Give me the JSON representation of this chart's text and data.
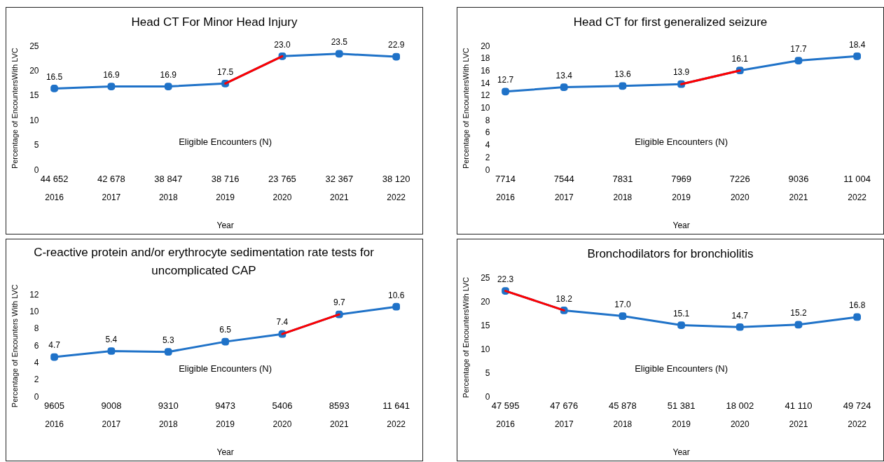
{
  "chart_data": [
    {
      "type": "line",
      "title": "Head CT For Minor Head Injury",
      "xlabel": "Year",
      "ylabel": "Percentage of EncountersWith LVC",
      "categories": [
        "2016",
        "2017",
        "2018",
        "2019",
        "2020",
        "2021",
        "2022"
      ],
      "series": [
        {
          "color": "#1f72c8",
          "marker": "square",
          "values": [
            16.5,
            16.9,
            16.9,
            17.5,
            23.0,
            23.5,
            22.9
          ],
          "value_labels": [
            "16.5",
            "16.9",
            "16.9",
            "17.5",
            "23.0",
            "23.5",
            "22.9"
          ]
        },
        {
          "color": "#ff0000",
          "marker": "none",
          "values": [
            null,
            null,
            null,
            17.5,
            23.0,
            null,
            null
          ]
        }
      ],
      "ylim": [
        0,
        25
      ],
      "yticks": [
        0,
        5,
        10,
        15,
        20,
        25
      ],
      "grid": false,
      "legend": false,
      "annotations": [
        "Eligible Encounters (N)",
        "44 652",
        "42 678",
        "38 847",
        "38 716",
        "23 765",
        "32 367",
        "38 120"
      ]
    },
    {
      "type": "line",
      "title": "Head CT for first generalized seizure",
      "xlabel": "Year",
      "ylabel": "Percentage of EncountersWith LVC",
      "categories": [
        "2016",
        "2017",
        "2018",
        "2019",
        "2020",
        "2021",
        "2022"
      ],
      "series": [
        {
          "color": "#1f72c8",
          "marker": "square",
          "values": [
            12.7,
            13.4,
            13.6,
            13.9,
            16.1,
            17.7,
            18.4
          ],
          "value_labels": [
            "12.7",
            "13.4",
            "13.6",
            "13.9",
            "16.1",
            "17.7",
            "18.4"
          ]
        },
        {
          "color": "#ff0000",
          "marker": "none",
          "values": [
            null,
            null,
            null,
            13.9,
            16.1,
            null,
            null
          ]
        }
      ],
      "ylim": [
        0,
        20
      ],
      "yticks": [
        0,
        2,
        4,
        6,
        8,
        10,
        12,
        14,
        16,
        18,
        20
      ],
      "grid": false,
      "legend": false,
      "annotations": [
        "Eligible Encounters (N)",
        "7714",
        "7544",
        "7831",
        "7969",
        "7226",
        "9036",
        "11 004"
      ]
    },
    {
      "type": "line",
      "title": "C-reactive protein and/or erythrocyte sedimentation rate tests for uncomplicated CAP",
      "xlabel": "Year",
      "ylabel": "Percentage of Encounters With LVC",
      "categories": [
        "2016",
        "2017",
        "2018",
        "2019",
        "2020",
        "2021",
        "2022"
      ],
      "series": [
        {
          "color": "#1f72c8",
          "marker": "square",
          "values": [
            4.7,
            5.4,
            5.3,
            6.5,
            7.4,
            9.7,
            10.6
          ],
          "value_labels": [
            "4.7",
            "5.4",
            "5.3",
            "6.5",
            "7.4",
            "9.7",
            "10.6"
          ]
        },
        {
          "color": "#ff0000",
          "marker": "none",
          "values": [
            null,
            null,
            null,
            null,
            7.4,
            9.7,
            null
          ]
        }
      ],
      "ylim": [
        0,
        12
      ],
      "yticks": [
        0,
        2,
        4,
        6,
        8,
        10,
        12
      ],
      "grid": false,
      "legend": false,
      "annotations": [
        "Eligible Encounters (N)",
        "9605",
        "9008",
        "9310",
        "9473",
        "5406",
        "8593",
        "11 641"
      ]
    },
    {
      "type": "line",
      "title": "Bronchodilators for bronchiolitis",
      "xlabel": "Year",
      "ylabel": "Percentage of EncountersWith LVC",
      "categories": [
        "2016",
        "2017",
        "2018",
        "2019",
        "2020",
        "2021",
        "2022"
      ],
      "series": [
        {
          "color": "#1f72c8",
          "marker": "square",
          "values": [
            22.3,
            18.2,
            17.0,
            15.1,
            14.7,
            15.2,
            16.8
          ],
          "value_labels": [
            "22.3",
            "18.2",
            "17.0",
            "15.1",
            "14.7",
            "15.2",
            "16.8"
          ]
        },
        {
          "color": "#ff0000",
          "marker": "none",
          "values": [
            22.3,
            18.2,
            null,
            null,
            null,
            null,
            null
          ]
        }
      ],
      "ylim": [
        0,
        25
      ],
      "yticks": [
        0,
        5,
        10,
        15,
        20,
        25
      ],
      "grid": false,
      "legend": false,
      "annotations": [
        "Eligible Encounters (N)",
        "47 595",
        "47 676",
        "45 878",
        "51 381",
        "18 002",
        "41 110",
        "49 724"
      ]
    }
  ]
}
